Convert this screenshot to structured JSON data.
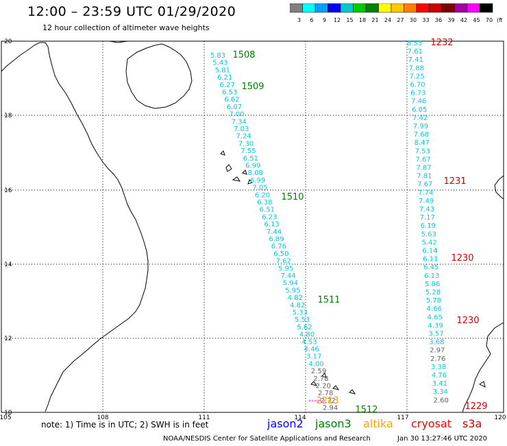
{
  "header": {
    "title": "12:00 – 23:59 UTC 01/29/2020",
    "subtitle": "12 hour collection of altimeter wave heights"
  },
  "colorbar": {
    "unit": "(ft)",
    "ticks": [
      "3",
      "6",
      "9",
      "12",
      "15",
      "18",
      "21",
      "24",
      "27",
      "30",
      "33",
      "36",
      "39",
      "42",
      "45",
      "70"
    ],
    "colors": [
      "#808080",
      "#00ffff",
      "#00a0ff",
      "#0000ff",
      "#00c8c8",
      "#00c800",
      "#008000",
      "#ffff00",
      "#ffc800",
      "#ff8000",
      "#ff0000",
      "#c80000",
      "#800000",
      "#a000a0",
      "#ff00ff",
      "#000000"
    ]
  },
  "axes": {
    "lon_labels": [
      "105",
      "108",
      "111",
      "114",
      "117",
      "120"
    ],
    "lat_labels": [
      "20",
      "18",
      "16",
      "14",
      "12",
      "10"
    ]
  },
  "track_labels": [
    {
      "text": "1508",
      "color": "#008000"
    },
    {
      "text": "1509",
      "color": "#008000"
    },
    {
      "text": "1510",
      "color": "#008000"
    },
    {
      "text": "1511",
      "color": "#008000"
    },
    {
      "text": "1512",
      "color": "#008000"
    },
    {
      "text": "1232",
      "color": "#d00000"
    },
    {
      "text": "1231",
      "color": "#d00000"
    },
    {
      "text": "1230",
      "color": "#d00000"
    },
    {
      "text": "1230",
      "color": "#d00000"
    },
    {
      "text": "1229",
      "color": "#d00000"
    },
    {
      "text": "2213",
      "color": "#ffa000"
    }
  ],
  "jason3_track": [
    "5.83",
    "5.43",
    "5.81",
    "6.21",
    "6.27",
    "6.53",
    "6.62",
    "6.07",
    "7.00",
    "7.34",
    "7.03",
    "7.24",
    "7.30",
    "7.55",
    "6.51",
    "6.99",
    "8.08",
    "6.99",
    "7.05",
    "6.20",
    "6.38",
    "6.51",
    "6.23",
    "6.13",
    "7.44",
    "6.89",
    "6.76",
    "6.50",
    "7.62",
    "5.95",
    "7.44",
    "5.94",
    "5.95",
    "4.82",
    "4.82",
    "5.33",
    "5.53",
    "5.62",
    "4.80",
    "4.53",
    "4.46",
    "3.17",
    "4.00",
    "2.59",
    "2.78",
    "2.20",
    "2.78",
    "2.72",
    "2.94"
  ],
  "jason3_gray_values": [
    "2.59",
    "2.78",
    "2.20",
    "2.78",
    "2.72",
    "2.94"
  ],
  "s3a_track": [
    "8.53",
    "7.61",
    "7.41",
    "7.88",
    "7.25",
    "6.70",
    "6.73",
    "7.46",
    "6.05",
    "7.42",
    "7.99",
    "7.68",
    "8.47",
    "7.53",
    "7.67",
    "7.87",
    "7.81",
    "7.67",
    "7.74",
    "7.49",
    "7.43",
    "7.17",
    "6.19",
    "5.63",
    "5.42",
    "6.14",
    "6.11",
    "6.45",
    "6.13",
    "5.86",
    "5.28",
    "5.78",
    "4.66",
    "4.65",
    "4.39",
    "3.57",
    "3.68",
    "2.97",
    "2.76",
    "3.38",
    "4.76",
    "3.41",
    "3.34",
    "2.60"
  ],
  "s3a_gray_values": [
    "2.97",
    "2.76",
    "2.60"
  ],
  "footer": {
    "note": "note: 1) Time is in UTC; 2) SWH is in feet",
    "satellites": [
      {
        "name": "jason2",
        "color": "#0000ff"
      },
      {
        "name": "jason3",
        "color": "#008000"
      },
      {
        "name": "altika",
        "color": "#ffa000"
      },
      {
        "name": "cryosat",
        "color": "#ff0000"
      },
      {
        "name": "s3a",
        "color": "#d00000"
      }
    ],
    "credit": "NOAA/NESDIS Center for Satellite Applications and Research",
    "timestamp": "Jan 30 13:27:46 UTC 2020"
  }
}
